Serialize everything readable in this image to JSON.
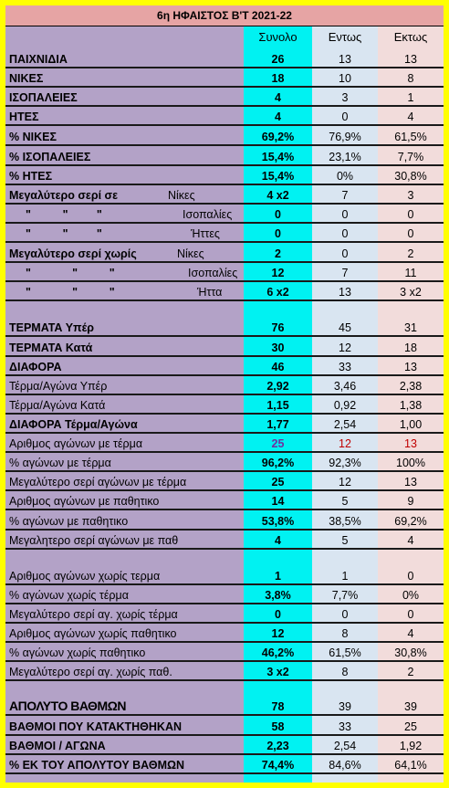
{
  "title": "6η ΗΦΑΙΣΤΟΣ Β'Τ 2021-22",
  "headers": [
    "Συνολο",
    "Εντως",
    "Εκτως"
  ],
  "colors": {
    "frame": "#ffff00",
    "label_bg": "#b3a2c7",
    "total_col": "#00f2f2",
    "home_col": "#d9e5f1",
    "away_col": "#f2dcdb",
    "title_bg": "#e6a4a4"
  },
  "rows": [
    {
      "label": "ΠΑΙΧΝΙΔΙΑ",
      "total": "26",
      "home": "13",
      "away": "13"
    },
    {
      "label": "ΝΙΚΕΣ",
      "total": "18",
      "home": "10",
      "away": "8"
    },
    {
      "label": "ΙΣΟΠΑΛΕΙΕΣ",
      "total": "4",
      "home": "3",
      "away": "1"
    },
    {
      "label": "ΗΤΕΣ",
      "total": "4",
      "home": "0",
      "away": "4"
    },
    {
      "label": "% ΝΙΚΕΣ",
      "total": "69,2%",
      "home": "76,9%",
      "away": "61,5%"
    },
    {
      "label": "% ΙΣΟΠΑΛΕΙΕΣ",
      "total": "15,4%",
      "home": "23,1%",
      "away": "7,7%"
    },
    {
      "label": "% ΗΤΕΣ",
      "total": "15,4%",
      "home": "0%",
      "away": "30,8%"
    },
    {
      "label": "Μεγαλύτερο σερί σε",
      "sub": "Νίκες",
      "total": "4 x2",
      "home": "7",
      "away": "3"
    },
    {
      "quote": "\"          \"         \"",
      "sub": "Ισοπαλίες",
      "total": "0",
      "home": "0",
      "away": "0"
    },
    {
      "quote": "\"          \"         \"",
      "sub": "Ήττες",
      "total": "0",
      "home": "0",
      "away": "0"
    },
    {
      "label": "Μεγαλύτερο σερί χωρίς",
      "sub": "Νίκες",
      "total": "2",
      "home": "0",
      "away": "2"
    },
    {
      "quote": "\"             \"          \"",
      "sub": "Ισοπαλίες",
      "total": "12",
      "home": "7",
      "away": "11"
    },
    {
      "quote": "\"             \"          \"",
      "sub": "Ήττα",
      "total": "6 x2",
      "home": "13",
      "away": "3 x2"
    },
    {
      "label": "ΤΕΡΜΑΤΑ Υπέρ",
      "total": "76",
      "home": "45",
      "away": "31"
    },
    {
      "label": "ΤΕΡΜΑΤΑ Κατά",
      "total": "30",
      "home": "12",
      "away": "18"
    },
    {
      "label": "ΔΙΑΦΟΡΑ",
      "total": "46",
      "home": "33",
      "away": "13"
    },
    {
      "label": "Τέρμα/Αγώνα Υπέρ",
      "total": "2,92",
      "home": "3,46",
      "away": "2,38"
    },
    {
      "label": "Τέρμα/Αγώνα Κατά",
      "total": "1,15",
      "home": "0,92",
      "away": "1,38"
    },
    {
      "label": "ΔΙΑΦΟΡΑ Τέρμα/Αγώνα",
      "total": "1,77",
      "home": "2,54",
      "away": "1,00"
    },
    {
      "label": "Αριθμος αγώνων με τέρμα",
      "total": "25",
      "home": "12",
      "away": "13"
    },
    {
      "label": "%  αγώνων με τέρμα",
      "total": "96,2%",
      "home": "92,3%",
      "away": "100%"
    },
    {
      "label": "Μεγαλύτερο σερί αγώνων με τέρμα",
      "total": "25",
      "home": "12",
      "away": "13"
    },
    {
      "label": "Αριθμος αγώνων με παθητικο",
      "total": "14",
      "home": "5",
      "away": "9"
    },
    {
      "label": "% αγώνων με παθητικο",
      "total": "53,8%",
      "home": "38,5%",
      "away": "69,2%"
    },
    {
      "label": "Μεγαλητερο σερί αγώνων με παθ",
      "total": "4",
      "home": "5",
      "away": "4"
    },
    {
      "label": "Αριθμος αγώνων χωρίς τερμα",
      "total": "1",
      "home": "1",
      "away": "0"
    },
    {
      "label": "% αγώνων χωρίς τέρμα",
      "total": "3,8%",
      "home": "7,7%",
      "away": "0%"
    },
    {
      "label": "Μεγαλύτερο σερί αγ. χωρίς τέρμα",
      "total": "0",
      "home": "0",
      "away": "0"
    },
    {
      "label": "Αριθμος αγώνων χωρίς παθητικο",
      "total": "12",
      "home": "8",
      "away": "4"
    },
    {
      "label": "% αγώνων χωρίς παθητικο",
      "total": "46,2%",
      "home": "61,5%",
      "away": "30,8%"
    },
    {
      "label": "Μεγαλύτερο σερί αγ. χωρίς παθ.",
      "total": "3 x2",
      "home": "8",
      "away": "2"
    },
    {
      "label": "ΑΠΟΛΥΤΟ ΒΑΘΜΩΝ",
      "total": "78",
      "home": "39",
      "away": "39"
    },
    {
      "label": "ΒΑΘΜΟΙ ΠΟΥ ΚΑΤΑΚΤΗΘΗΚΑΝ",
      "total": "58",
      "home": "33",
      "away": "25"
    },
    {
      "label": "ΒΑΘΜΟΙ / ΑΓΩΝΑ",
      "total": "2,23",
      "home": "2,54",
      "away": "1,92"
    },
    {
      "label": "% ΕΚ ΤΟΥ ΑΠΟΛΥΤΟΥ ΒΑΘΜΩΝ",
      "total": "74,4%",
      "home": "84,6%",
      "away": "64,1%"
    }
  ]
}
